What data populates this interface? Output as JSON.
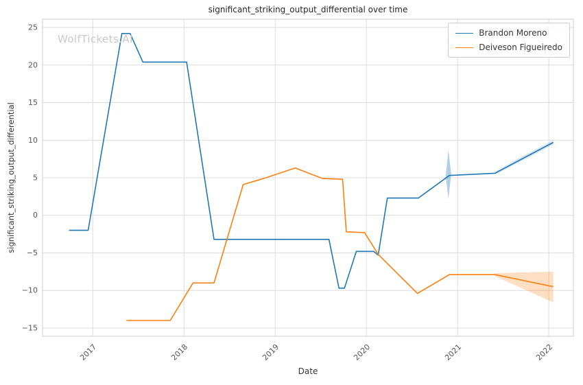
{
  "page": {
    "title": "significant_striking_output_differential over time",
    "watermark": "WolfTickets.AI",
    "xlabel": "Date",
    "ylabel": "significant_striking_output_differential"
  },
  "legend": [
    {
      "label": "Brandon Moreno",
      "color": "#1f77b4"
    },
    {
      "label": "Deiveson Figueiredo",
      "color": "#ff7f0e"
    }
  ],
  "chart_data": {
    "type": "line",
    "title": "significant_striking_output_differential over time",
    "xlabel": "Date",
    "ylabel": "significant_striking_output_differential",
    "grid": true,
    "legend_position": "upper right",
    "x_ticks": [
      2017,
      2018,
      2019,
      2020,
      2021,
      2022
    ],
    "y_ticks": [
      -15,
      -10,
      -5,
      0,
      5,
      10,
      15,
      20,
      25
    ],
    "x_range": [
      2016.45,
      2022.27
    ],
    "y_range": [
      -16.1,
      26.1
    ],
    "series": [
      {
        "name": "Brandon Moreno",
        "color": "#1f77b4",
        "points": [
          [
            2016.74,
            -2.0
          ],
          [
            2016.95,
            -2.0
          ],
          [
            2017.32,
            24.2
          ],
          [
            2017.41,
            24.2
          ],
          [
            2017.55,
            20.4
          ],
          [
            2018.03,
            20.4
          ],
          [
            2018.33,
            -3.2
          ],
          [
            2019.59,
            -3.2
          ],
          [
            2019.7,
            -9.7
          ],
          [
            2019.76,
            -9.7
          ],
          [
            2019.89,
            -4.8
          ],
          [
            2020.08,
            -4.8
          ],
          [
            2020.13,
            -5.3
          ],
          [
            2020.23,
            2.3
          ],
          [
            2020.57,
            2.3
          ],
          [
            2020.91,
            5.3
          ],
          [
            2021.41,
            5.6
          ],
          [
            2022.05,
            9.7
          ]
        ]
      },
      {
        "name": "Deiveson Figueiredo",
        "color": "#ff7f0e",
        "points": [
          [
            2017.37,
            -14.0
          ],
          [
            2017.85,
            -14.0
          ],
          [
            2018.1,
            -9.0
          ],
          [
            2018.33,
            -9.0
          ],
          [
            2018.65,
            4.1
          ],
          [
            2018.9,
            5.0
          ],
          [
            2019.22,
            6.3
          ],
          [
            2019.52,
            4.9
          ],
          [
            2019.74,
            4.8
          ],
          [
            2019.78,
            -2.2
          ],
          [
            2019.98,
            -2.3
          ],
          [
            2020.13,
            -5.2
          ],
          [
            2020.56,
            -10.4
          ],
          [
            2020.91,
            -7.9
          ],
          [
            2021.41,
            -7.9
          ],
          [
            2022.05,
            -9.5
          ]
        ]
      }
    ],
    "bands": [
      {
        "name": "brandon-moreno-ci-2020",
        "color": "#1f77b4",
        "opacity": 0.35,
        "x": [
          2020.87,
          2020.9,
          2020.93
        ],
        "upper": [
          5.2,
          8.7,
          5.5
        ],
        "lower": [
          5.2,
          2.2,
          5.5
        ]
      },
      {
        "name": "brandon-moreno-ci-2021-2022",
        "color": "#1f77b4",
        "opacity": 0.18,
        "x": [
          2021.41,
          2021.7,
          2022.05
        ],
        "upper": [
          5.8,
          7.8,
          10.0
        ],
        "lower": [
          5.4,
          7.2,
          9.4
        ]
      },
      {
        "name": "deiveson-figueiredo-ci-2021-2022",
        "color": "#ff7f0e",
        "opacity": 0.25,
        "x": [
          2021.41,
          2022.05
        ],
        "upper": [
          -7.7,
          -7.5
        ],
        "lower": [
          -8.1,
          -11.6
        ]
      }
    ]
  }
}
